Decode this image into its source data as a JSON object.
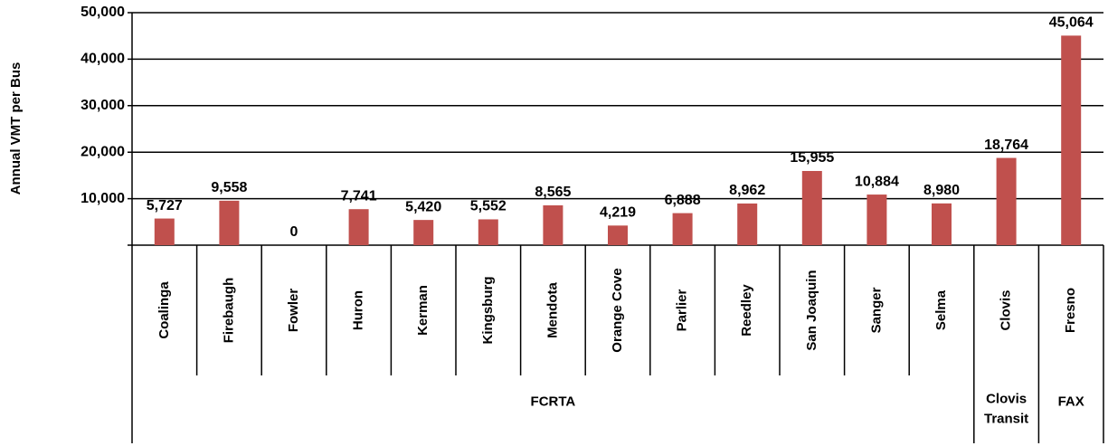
{
  "chart_data": {
    "type": "bar",
    "y_label": "Annual VMT per Bus",
    "categories": [
      "Coalinga",
      "Firebaugh",
      "Fowler",
      "Huron",
      "Kerman",
      "Kingsburg",
      "Mendota",
      "Orange Cove",
      "Parlier",
      "Reedley",
      "San Joaquin",
      "Sanger",
      "Selma",
      "Clovis",
      "Fresno"
    ],
    "values": [
      5727,
      9558,
      0,
      7741,
      5420,
      5552,
      8565,
      4219,
      6888,
      8962,
      15955,
      10884,
      8980,
      18764,
      45064
    ],
    "value_labels": [
      "5,727",
      "9,558",
      "0",
      "7,741",
      "5,420",
      "5,552",
      "8,565",
      "4,219",
      "6,888",
      "8,962",
      "15,955",
      "10,884",
      "8,980",
      "18,764",
      "45,064"
    ],
    "groups": [
      {
        "name": [
          "FCRTA"
        ],
        "span": 13
      },
      {
        "name": [
          "Clovis",
          "Transit"
        ],
        "span": 1
      },
      {
        "name": [
          "FAX"
        ],
        "span": 1
      }
    ],
    "color": "#c0504d",
    "ylim": [
      0,
      50000
    ],
    "yticks": [
      {
        "value": 10000,
        "label": "10,000"
      },
      {
        "value": 20000,
        "label": "20,000"
      },
      {
        "value": 30000,
        "label": "30,000"
      },
      {
        "value": 40000,
        "label": "40,000"
      },
      {
        "value": 50000,
        "label": "50,000"
      }
    ],
    "grid": true
  }
}
